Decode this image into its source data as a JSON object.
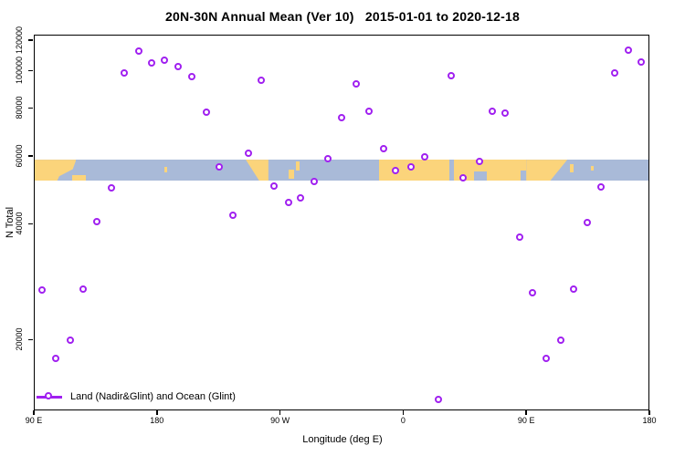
{
  "title": "20N-30N Annual Mean (Ver 10)   2015-01-01 to 2020-12-18",
  "legend": {
    "label": "Land (Nadir&Glint) and Ocean (Glint)"
  },
  "colors": {
    "point": "#A020F0",
    "land": "#FBD47B",
    "ocean": "#A9BAD8",
    "axis": "#000000"
  },
  "chart_data": {
    "type": "scatter",
    "title": "20N-30N Annual Mean (Ver 10)   2015-01-01 to 2020-12-18",
    "xlabel": "Longitude (deg E)",
    "ylabel": "N Total",
    "x_axis_deg_span": [
      0,
      450
    ],
    "x_ticks": [
      {
        "label": "90 E",
        "deg": 0
      },
      {
        "label": "180",
        "deg": 90
      },
      {
        "label": "90 W",
        "deg": 180
      },
      {
        "label": "0",
        "deg": 270
      },
      {
        "label": "90 E",
        "deg": 360
      },
      {
        "label": "180",
        "deg": 450
      }
    ],
    "y_scale": "log",
    "y_domain": [
      13100,
      124000
    ],
    "y_ticks": [
      20000,
      40000,
      60000,
      80000,
      100000,
      120000
    ],
    "legend_position": "bottom-left-inside",
    "grid": false,
    "series": [
      {
        "name": "Land (Nadir&Glint) and Ocean (Glint)",
        "marker": "open-circle",
        "color": "#A020F0",
        "points": [
          {
            "deg": 6.0,
            "lon": 96,
            "n": 26900
          },
          {
            "deg": 16.0,
            "lon": 106,
            "n": 17900
          },
          {
            "deg": 26.7,
            "lon": 117,
            "n": 19900
          },
          {
            "deg": 36.1,
            "lon": 126,
            "n": 27100
          },
          {
            "deg": 46.3,
            "lon": 136,
            "n": 40600
          },
          {
            "deg": 56.7,
            "lon": 147,
            "n": 49600
          },
          {
            "deg": 66.1,
            "lon": 156,
            "n": 98500
          },
          {
            "deg": 76.6,
            "lon": 167,
            "n": 112500
          },
          {
            "deg": 86.3,
            "lon": 176,
            "n": 104800
          },
          {
            "deg": 95.7,
            "lon": -174,
            "n": 106500
          },
          {
            "deg": 105.7,
            "lon": -164,
            "n": 102700
          },
          {
            "deg": 115.7,
            "lon": -154,
            "n": 96700
          },
          {
            "deg": 126.2,
            "lon": -144,
            "n": 78100
          },
          {
            "deg": 135.3,
            "lon": -135,
            "n": 56200
          },
          {
            "deg": 145.8,
            "lon": -124,
            "n": 42200
          },
          {
            "deg": 157.1,
            "lon": -113,
            "n": 60900
          },
          {
            "deg": 166.1,
            "lon": -104,
            "n": 94600
          },
          {
            "deg": 175.4,
            "lon": -95,
            "n": 50100
          },
          {
            "deg": 186.1,
            "lon": -84,
            "n": 45500
          },
          {
            "deg": 195.2,
            "lon": -75,
            "n": 46600
          },
          {
            "deg": 205.2,
            "lon": -65,
            "n": 51500
          },
          {
            "deg": 214.8,
            "lon": -55,
            "n": 59100
          },
          {
            "deg": 224.8,
            "lon": -45,
            "n": 75600
          },
          {
            "deg": 235.9,
            "lon": -34,
            "n": 92400
          },
          {
            "deg": 245.2,
            "lon": -25,
            "n": 78400
          },
          {
            "deg": 255.9,
            "lon": -14,
            "n": 62700
          },
          {
            "deg": 264.4,
            "lon": -6,
            "n": 54900
          },
          {
            "deg": 275.5,
            "lon": 6,
            "n": 56200
          },
          {
            "deg": 285.5,
            "lon": 16,
            "n": 59600
          },
          {
            "deg": 296.0,
            "lon": 26,
            "n": 14000
          },
          {
            "deg": 304.9,
            "lon": 35,
            "n": 97000
          },
          {
            "deg": 313.8,
            "lon": 44,
            "n": 52700
          },
          {
            "deg": 325.6,
            "lon": 56,
            "n": 58200
          },
          {
            "deg": 335.3,
            "lon": 65,
            "n": 78400
          },
          {
            "deg": 344.3,
            "lon": 74,
            "n": 77600
          },
          {
            "deg": 355.0,
            "lon": 85,
            "n": 36900
          },
          {
            "deg": 364.7,
            "lon": 95,
            "n": 26500
          },
          {
            "deg": 374.5,
            "lon": 104,
            "n": 17900
          },
          {
            "deg": 385.2,
            "lon": 115,
            "n": 19900
          },
          {
            "deg": 394.6,
            "lon": 125,
            "n": 27100
          },
          {
            "deg": 404.8,
            "lon": 135,
            "n": 40300
          },
          {
            "deg": 414.8,
            "lon": 145,
            "n": 49800
          },
          {
            "deg": 424.6,
            "lon": 155,
            "n": 98500
          },
          {
            "deg": 434.5,
            "lon": 164,
            "n": 113000
          },
          {
            "deg": 444.0,
            "lon": 174,
            "n": 105200
          }
        ]
      }
    ],
    "map_band": {
      "n_top": 58700,
      "n_bottom": 51700,
      "ocean_color": "#A9BAD8",
      "land_color": "#FBD47B",
      "land_segments": [
        {
          "f": 0,
          "t": 31,
          "clip": "polygon(0 0, 100% 0, 92% 45%, 60% 78%, 55% 100%, 0 100%)"
        },
        {
          "f": 28,
          "t": 38,
          "y0": 0.72,
          "y1": 1
        },
        {
          "f": 95.5,
          "t": 97.5,
          "y0": 0.35,
          "y1": 0.6
        },
        {
          "f": 155,
          "t": 171.5,
          "clip": "polygon(0 0, 100% 0, 100% 100%, 60% 100%)"
        },
        {
          "f": 186,
          "t": 190,
          "y0": 0.45,
          "y1": 0.9
        },
        {
          "f": 191.5,
          "t": 194,
          "y0": 0.1,
          "y1": 0.5
        },
        {
          "f": 252.5,
          "t": 304
        },
        {
          "f": 307,
          "t": 321.5
        },
        {
          "f": 321.5,
          "t": 331,
          "y0": 0,
          "y1": 0.55
        },
        {
          "f": 331,
          "t": 356
        },
        {
          "f": 356,
          "t": 360,
          "y0": 0,
          "y1": 0.5
        },
        {
          "f": 360,
          "t": 390,
          "clip": "polygon(0 0, 100% 0, 58% 100%, 0 100%)"
        },
        {
          "f": 392,
          "t": 394.5,
          "y0": 0.2,
          "y1": 0.6
        },
        {
          "f": 407,
          "t": 409,
          "y0": 0.3,
          "y1": 0.5
        }
      ]
    }
  }
}
